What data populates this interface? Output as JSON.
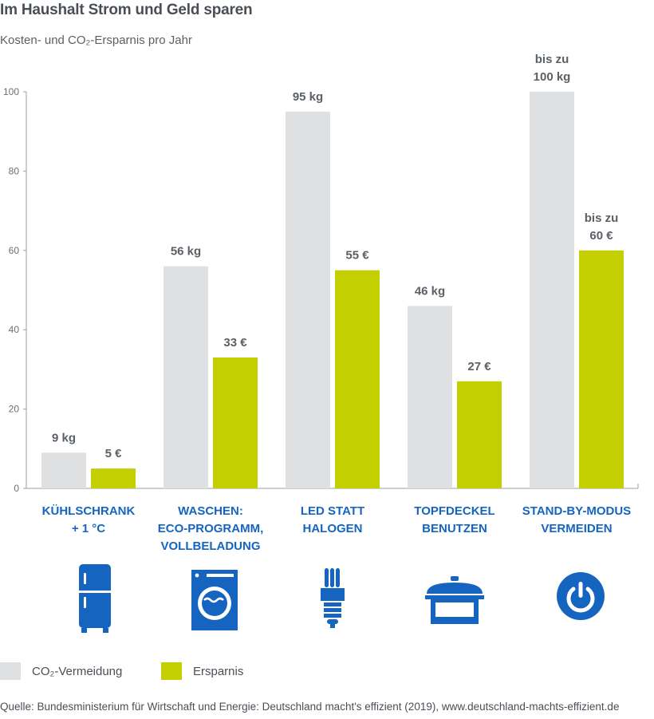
{
  "title": "Im Haushalt Strom und Geld sparen",
  "subtitle": "Kosten- und CO₂-Ersparnis pro Jahr",
  "colors": {
    "co2": "#dfe0e1",
    "savings": "#c3cf00",
    "category": "#1565c0",
    "axis": "#9a9ea2"
  },
  "chart_data": {
    "type": "bar",
    "yticks": [
      "0",
      "20",
      "40",
      "60",
      "80",
      "100"
    ],
    "ylim": [
      0,
      100
    ],
    "categories": [
      [
        "KÜHLSCHRANK",
        "+ 1 °C"
      ],
      [
        "WASCHEN:",
        "ECO-PROGRAMM,",
        "VOLLBELADUNG"
      ],
      [
        "LED STATT",
        "HALOGEN"
      ],
      [
        "TOPFDECKEL",
        "BENUTZEN"
      ],
      [
        "STAND-BY-MODUS",
        "VERMEIDEN"
      ]
    ],
    "series": [
      {
        "name": "CO₂-Vermeidung",
        "values": [
          9,
          56,
          95,
          46,
          100
        ],
        "labels": [
          [
            "9 kg"
          ],
          [
            "56 kg"
          ],
          [
            "95 kg"
          ],
          [
            "46 kg"
          ],
          [
            "bis zu",
            "100 kg"
          ]
        ]
      },
      {
        "name": "Ersparnis",
        "values": [
          5,
          33,
          55,
          27,
          60
        ],
        "labels": [
          [
            "5 €"
          ],
          [
            "33 €"
          ],
          [
            "55 €"
          ],
          [
            "27 €"
          ],
          [
            "bis zu",
            "60 €"
          ]
        ]
      }
    ]
  },
  "icons": [
    "fridge-icon",
    "washing-machine-icon",
    "bulb-icon",
    "pot-icon",
    "power-icon"
  ],
  "source": "Quelle: Bundesministerium für Wirtschaft und Energie: Deutschland macht's effizient (2019), www.deutschland-machts-effizient.de"
}
